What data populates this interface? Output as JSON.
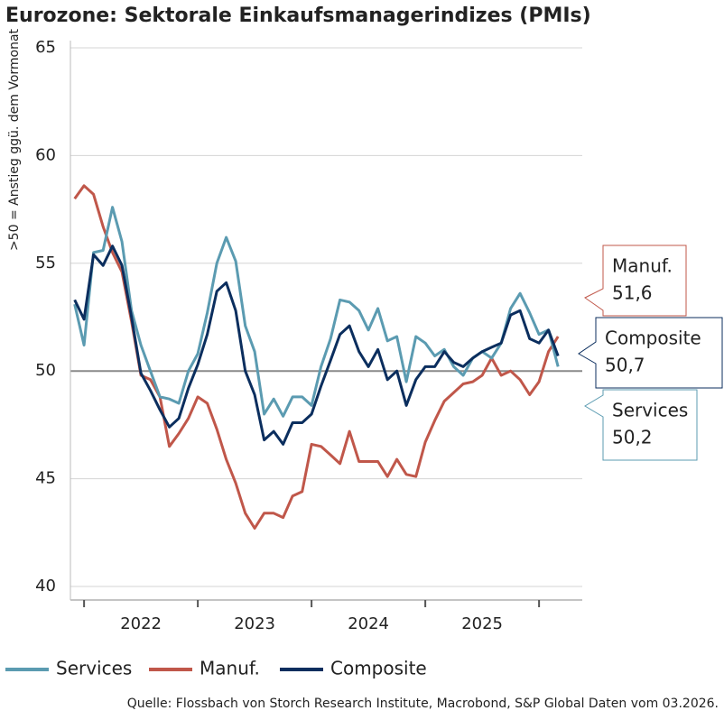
{
  "chart_data": {
    "type": "line",
    "title": "Eurozone: Sektorale Einkaufsmanagerindizes (PMIs)",
    "y_label": ">50 = Anstieg ggü. dem Vormonat",
    "source": "Quelle: Flossbach von Storch Research Institute, Macrobond, S&P Global Daten vom 03.2026.",
    "x": [
      2021.917,
      2022.0,
      2022.083,
      2022.167,
      2022.25,
      2022.333,
      2022.417,
      2022.5,
      2022.583,
      2022.667,
      2022.75,
      2022.833,
      2022.917,
      2023.0,
      2023.083,
      2023.167,
      2023.25,
      2023.333,
      2023.417,
      2023.5,
      2023.583,
      2023.667,
      2023.75,
      2023.833,
      2023.917,
      2024.0,
      2024.083,
      2024.167,
      2024.25,
      2024.333,
      2024.417,
      2024.5,
      2024.583,
      2024.667,
      2024.75,
      2024.833,
      2024.917,
      2025.0,
      2025.083,
      2025.167,
      2025.25,
      2025.333,
      2025.417,
      2025.5,
      2025.583,
      2025.667,
      2025.75,
      2025.833,
      2025.917,
      2026.0,
      2026.083,
      2026.167
    ],
    "xlim": [
      2021.88,
      2026.38
    ],
    "xticks": [
      {
        "value": 2022,
        "label": "2022"
      },
      {
        "value": 2023,
        "label": "2023"
      },
      {
        "value": 2024,
        "label": "2024"
      },
      {
        "value": 2025,
        "label": "2025"
      },
      {
        "value": 2026,
        "label": ""
      }
    ],
    "ylim": [
      40,
      65
    ],
    "yticks": [
      40,
      45,
      50,
      55,
      60,
      65
    ],
    "grid": true,
    "reference_line": 50,
    "series": [
      {
        "name": "Services",
        "color": "#5b9bb1",
        "end_label": "50,2",
        "values": [
          53.1,
          51.2,
          55.5,
          55.6,
          57.6,
          56.0,
          52.8,
          51.2,
          50.0,
          48.8,
          48.7,
          48.5,
          50.0,
          50.8,
          52.7,
          55.0,
          56.2,
          55.1,
          52.1,
          50.9,
          48.0,
          48.7,
          47.9,
          48.8,
          48.8,
          48.4,
          50.2,
          51.5,
          53.3,
          53.2,
          52.8,
          51.9,
          52.9,
          51.4,
          51.6,
          49.5,
          51.6,
          51.3,
          50.7,
          51.0,
          50.2,
          49.8,
          50.6,
          50.9,
          50.6,
          51.3,
          52.9,
          53.6,
          52.7,
          51.7,
          51.9,
          50.2
        ]
      },
      {
        "name": "Manuf.",
        "color": "#c0574a",
        "end_label": "51,6",
        "values": [
          58.0,
          58.6,
          58.2,
          56.7,
          55.5,
          54.6,
          52.3,
          49.8,
          49.6,
          48.8,
          46.5,
          47.1,
          47.8,
          48.8,
          48.5,
          47.3,
          45.9,
          44.8,
          43.4,
          42.7,
          43.4,
          43.4,
          43.2,
          44.2,
          44.4,
          46.6,
          46.5,
          46.1,
          45.7,
          47.2,
          45.8,
          45.8,
          45.8,
          45.1,
          45.9,
          45.2,
          45.1,
          46.7,
          47.7,
          48.6,
          49.0,
          49.4,
          49.5,
          49.8,
          50.6,
          49.8,
          50.0,
          49.6,
          48.9,
          49.5,
          50.9,
          51.6
        ]
      },
      {
        "name": "Composite",
        "color": "#0b2e5e",
        "end_label": "50,7",
        "values": [
          53.3,
          52.4,
          55.4,
          54.9,
          55.8,
          54.9,
          52.5,
          49.9,
          49.1,
          48.2,
          47.4,
          47.8,
          49.2,
          50.3,
          51.7,
          53.7,
          54.1,
          52.8,
          50.0,
          48.9,
          46.8,
          47.2,
          46.6,
          47.6,
          47.6,
          48.0,
          49.3,
          50.5,
          51.7,
          52.1,
          50.9,
          50.2,
          51.0,
          49.6,
          50.0,
          48.4,
          49.6,
          50.2,
          50.2,
          50.9,
          50.4,
          50.2,
          50.6,
          50.9,
          51.1,
          51.3,
          52.6,
          52.8,
          51.5,
          51.3,
          51.9,
          50.7
        ]
      }
    ]
  }
}
